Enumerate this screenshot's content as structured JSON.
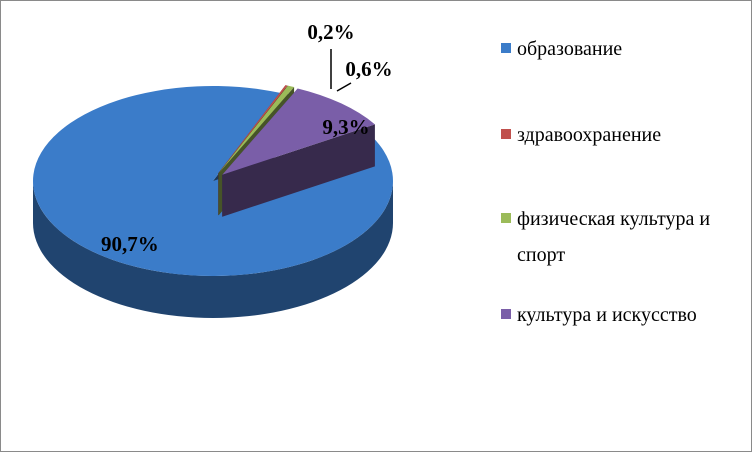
{
  "chart_data": {
    "type": "pie",
    "three_d": true,
    "categories": [
      "образование",
      "здравоохранение",
      "физическая культура и спорт",
      "культура и искусство"
    ],
    "values": [
      90.7,
      0.2,
      0.6,
      9.3
    ],
    "value_labels": [
      "90,7%",
      "0,2%",
      "0,6%",
      "9,3%"
    ],
    "colors": [
      "#3b7cc9",
      "#c0504d",
      "#9bbb59",
      "#7a5ea8"
    ],
    "legend": "right"
  }
}
